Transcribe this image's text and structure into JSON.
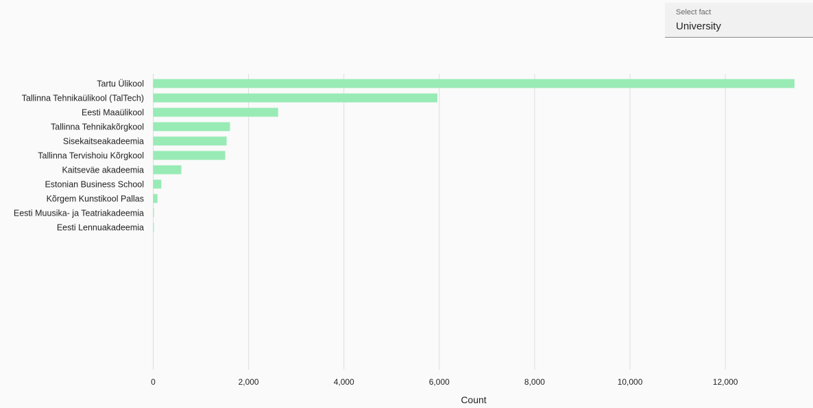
{
  "select_fact": {
    "label": "Select fact",
    "value": "University"
  },
  "chart_data": {
    "type": "bar",
    "orientation": "horizontal",
    "categories": [
      "Tartu Ülikool",
      "Tallinna Tehnikaülikool (TalTech)",
      "Eesti Maaülikool",
      "Tallinna Tehnikakõrgkool",
      "Sisekaitseakadeemia",
      "Tallinna Tervishoiu Kõrgkool",
      "Kaitseväe akadeemia",
      "Estonian Business School",
      "Kõrgem Kunstikool Pallas",
      "Eesti Muusika- ja Teatriakadeemia",
      "Eesti Lennuakadeemia"
    ],
    "values": [
      13450,
      5960,
      2620,
      1610,
      1540,
      1510,
      590,
      170,
      90,
      15,
      10
    ],
    "xlabel": "Count",
    "ylabel": "",
    "xlim": [
      0,
      13450
    ],
    "xticks": [
      0,
      2000,
      4000,
      6000,
      8000,
      10000,
      12000
    ],
    "xtick_labels": [
      "0",
      "2,000",
      "4,000",
      "6,000",
      "8,000",
      "10,000",
      "12,000"
    ],
    "grid": true,
    "bar_color": "#98ebb5",
    "grid_color": "#dddddd"
  }
}
